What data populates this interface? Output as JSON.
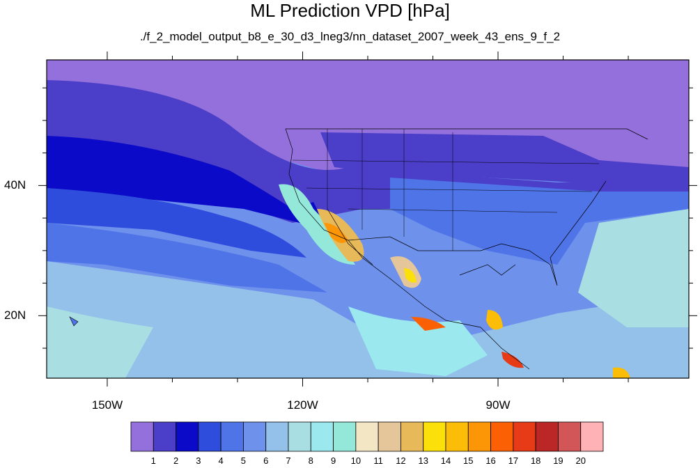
{
  "title": "ML Prediction VPD [hPa]",
  "subtitle": "./f_2_model_output_b8_e_30_d3_lneg3/nn_dataset_2007_week_43_ens_9_f_2",
  "map": {
    "projection": "cylindrical-equidistant",
    "lon_ticks": [
      {
        "label": "150W",
        "lon": -150
      },
      {
        "label": "120W",
        "lon": -120
      },
      {
        "label": "90W",
        "lon": -90
      }
    ],
    "lat_ticks": [
      {
        "label": "40N",
        "lat": 40
      },
      {
        "label": "20N",
        "lat": 20
      }
    ],
    "lon_range": [
      -159.3,
      -60.7
    ],
    "lat_range": [
      10.4,
      59.3
    ],
    "features": [
      "coastlines",
      "us-state-borders",
      "national-borders"
    ]
  },
  "colorbar": {
    "labels": [
      "1",
      "2",
      "3",
      "4",
      "5",
      "6",
      "7",
      "8",
      "9",
      "10",
      "11",
      "12",
      "13",
      "14",
      "15",
      "16",
      "17",
      "18",
      "19",
      "20"
    ],
    "colors": [
      "#9370db",
      "#4b3ec9",
      "#0a0ac8",
      "#2f4ddc",
      "#4f74e8",
      "#6e91ec",
      "#93c1ea",
      "#a9dfe3",
      "#9be9ef",
      "#93e8da",
      "#f2e6c4",
      "#e4c69a",
      "#e8b958",
      "#fce00a",
      "#fcbd08",
      "#fc9606",
      "#fc6004",
      "#e73a17",
      "#bb2626",
      "#d25657",
      "#feb2b5"
    ]
  }
}
